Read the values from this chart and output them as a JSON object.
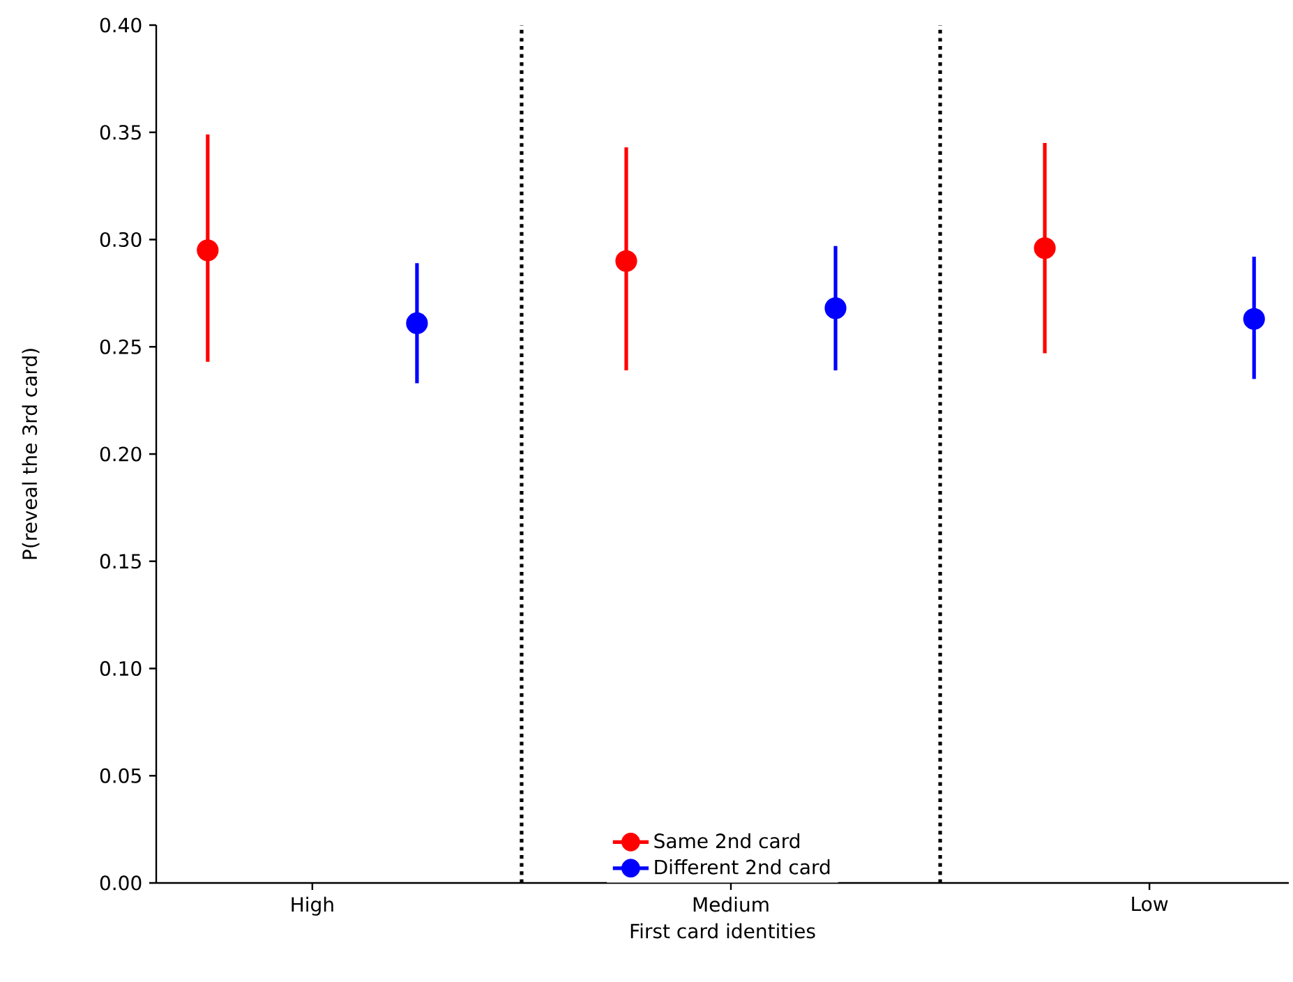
{
  "chart_data": {
    "type": "scatter",
    "xlabel": "First card identities",
    "ylabel": "P(reveal the 3rd card)",
    "categories": [
      "High",
      "Medium",
      "Low"
    ],
    "series": [
      {
        "name": "Same 2nd card",
        "color": "#ff0000",
        "values": [
          0.295,
          0.29,
          0.296
        ],
        "errors": [
          [
            0.243,
            0.349
          ],
          [
            0.239,
            0.343
          ],
          [
            0.247,
            0.345
          ]
        ]
      },
      {
        "name": "Different 2nd card",
        "color": "#0000ff",
        "values": [
          0.261,
          0.268,
          0.263
        ],
        "errors": [
          [
            0.233,
            0.289
          ],
          [
            0.239,
            0.297
          ],
          [
            0.235,
            0.292
          ]
        ]
      }
    ],
    "ylim": [
      0,
      0.4
    ],
    "yticks": [
      {
        "value": 0,
        "label": "0.00"
      },
      {
        "value": 0.05,
        "label": "0.05"
      },
      {
        "value": 0.1,
        "label": "0.10"
      },
      {
        "value": 0.15,
        "label": "0.15"
      },
      {
        "value": 0.2,
        "label": "0.20"
      },
      {
        "value": 0.25,
        "label": "0.25"
      },
      {
        "value": 0.3,
        "label": "0.30"
      },
      {
        "value": 0.35,
        "label": "0.35"
      },
      {
        "value": 0.4,
        "label": "0.40"
      }
    ],
    "marker": "circle",
    "legend": "bottom",
    "grid": false
  }
}
